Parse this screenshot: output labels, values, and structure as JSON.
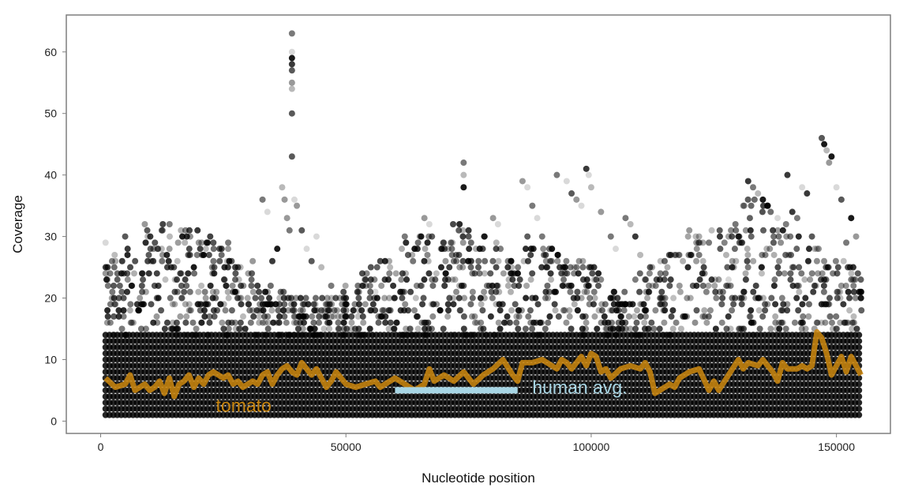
{
  "chart_data": {
    "type": "scatter",
    "title": "",
    "xlabel": "Nucleotide position",
    "ylabel": "Coverage",
    "xlim": [
      -7000,
      161000
    ],
    "ylim": [
      -2,
      66
    ],
    "xticks": [
      0,
      50000,
      100000,
      150000
    ],
    "yticks": [
      0,
      10,
      20,
      30,
      40,
      50,
      60
    ],
    "grid": false,
    "legend": "none",
    "point_color": "#000000",
    "points_note": "dense grey/black semi-transparent points; coverage per nucleotide position, mostly 1-20",
    "points": [
      [
        1000,
        29
      ],
      [
        1000,
        25
      ],
      [
        1000,
        24
      ],
      [
        1500,
        22
      ],
      [
        2000,
        19
      ],
      [
        5000,
        30
      ],
      [
        5500,
        28
      ],
      [
        9000,
        32
      ],
      [
        9500,
        31
      ],
      [
        11000,
        22
      ],
      [
        17000,
        21
      ],
      [
        19000,
        25
      ],
      [
        20000,
        29
      ],
      [
        21000,
        27
      ],
      [
        23000,
        26
      ],
      [
        26000,
        29
      ],
      [
        26000,
        28
      ],
      [
        28000,
        25
      ],
      [
        31000,
        26
      ],
      [
        33000,
        36
      ],
      [
        34000,
        34
      ],
      [
        35000,
        26
      ],
      [
        36000,
        28
      ],
      [
        37000,
        38
      ],
      [
        37500,
        36
      ],
      [
        38000,
        33
      ],
      [
        38500,
        31
      ],
      [
        39000,
        63
      ],
      [
        39000,
        60
      ],
      [
        39000,
        59
      ],
      [
        39000,
        58
      ],
      [
        39000,
        57
      ],
      [
        39000,
        55
      ],
      [
        39000,
        54
      ],
      [
        39000,
        50
      ],
      [
        39000,
        43
      ],
      [
        39500,
        36
      ],
      [
        40000,
        35
      ],
      [
        41000,
        31
      ],
      [
        42000,
        28
      ],
      [
        43000,
        26
      ],
      [
        44000,
        30
      ],
      [
        45000,
        25
      ],
      [
        47000,
        22
      ],
      [
        50000,
        20
      ],
      [
        54000,
        23
      ],
      [
        56000,
        21
      ],
      [
        59000,
        25
      ],
      [
        62000,
        30
      ],
      [
        64000,
        28
      ],
      [
        66000,
        33
      ],
      [
        67000,
        32
      ],
      [
        70000,
        28
      ],
      [
        72000,
        26
      ],
      [
        74000,
        42
      ],
      [
        74000,
        40
      ],
      [
        74000,
        38
      ],
      [
        75000,
        31
      ],
      [
        77000,
        25
      ],
      [
        80000,
        33
      ],
      [
        81000,
        32
      ],
      [
        83000,
        25
      ],
      [
        86000,
        39
      ],
      [
        87000,
        38
      ],
      [
        88000,
        35
      ],
      [
        89000,
        33
      ],
      [
        90000,
        30
      ],
      [
        92000,
        28
      ],
      [
        93000,
        40
      ],
      [
        95000,
        39
      ],
      [
        96000,
        37
      ],
      [
        97000,
        36
      ],
      [
        98000,
        35
      ],
      [
        99000,
        41
      ],
      [
        99500,
        40
      ],
      [
        100000,
        38
      ],
      [
        102000,
        34
      ],
      [
        104000,
        30
      ],
      [
        105000,
        28
      ],
      [
        107000,
        33
      ],
      [
        108000,
        32
      ],
      [
        109000,
        30
      ],
      [
        110000,
        27
      ],
      [
        112000,
        25
      ],
      [
        114000,
        23
      ],
      [
        116000,
        22
      ],
      [
        118000,
        22
      ],
      [
        120000,
        31
      ],
      [
        122000,
        27
      ],
      [
        124000,
        29
      ],
      [
        126000,
        23
      ],
      [
        128000,
        23
      ],
      [
        130000,
        30
      ],
      [
        131000,
        35
      ],
      [
        132000,
        39
      ],
      [
        133000,
        38
      ],
      [
        134000,
        37
      ],
      [
        135000,
        36
      ],
      [
        136000,
        35
      ],
      [
        138000,
        33
      ],
      [
        140000,
        40
      ],
      [
        141000,
        34
      ],
      [
        142000,
        33
      ],
      [
        143000,
        38
      ],
      [
        144000,
        37
      ],
      [
        145000,
        30
      ],
      [
        146000,
        28
      ],
      [
        147000,
        46
      ],
      [
        147500,
        45
      ],
      [
        148000,
        44
      ],
      [
        148500,
        42
      ],
      [
        149000,
        43
      ],
      [
        150000,
        38
      ],
      [
        151000,
        36
      ],
      [
        152000,
        29
      ],
      [
        153000,
        33
      ],
      [
        154000,
        30
      ],
      [
        155000,
        21
      ]
    ],
    "series": [
      {
        "name": "tomato",
        "color": "#c8850f",
        "x": [
          1000,
          3000,
          5000,
          6000,
          7000,
          8000,
          9000,
          10000,
          11000,
          12000,
          13000,
          14000,
          15000,
          16000,
          17000,
          18000,
          19000,
          20000,
          21000,
          22000,
          23000,
          24000,
          25000,
          26000,
          27000,
          28000,
          29000,
          30000,
          31000,
          32000,
          33000,
          34000,
          35000,
          36000,
          37000,
          38000,
          39000,
          40000,
          41000,
          42000,
          43000,
          44000,
          45000,
          46000,
          47000,
          48000,
          50000,
          52000,
          54000,
          56000,
          57000,
          58000,
          60000,
          62000,
          64000,
          66000,
          67000,
          68000,
          70000,
          72000,
          74000,
          76000,
          78000,
          80000,
          82000,
          84000,
          85000,
          86000,
          88000,
          90000,
          92000,
          93000,
          94000,
          95000,
          96000,
          97000,
          98000,
          99000,
          100000,
          101000,
          102000,
          103000,
          104000,
          106000,
          108000,
          110000,
          111000,
          112000,
          113000,
          114000,
          116000,
          117000,
          118000,
          120000,
          122000,
          124000,
          125000,
          126000,
          128000,
          130000,
          131000,
          132000,
          134000,
          135000,
          136000,
          137000,
          138000,
          139000,
          140000,
          142000,
          143000,
          144000,
          145000,
          146000,
          147000,
          148000,
          149000,
          150000,
          151000,
          152000,
          153000,
          154000,
          155000
        ],
        "y": [
          7,
          5.5,
          6,
          7.5,
          5,
          5.5,
          6,
          5,
          5.5,
          6.5,
          4.5,
          7,
          4,
          6,
          6.5,
          7.5,
          5.5,
          7,
          6,
          7.5,
          8,
          7.5,
          7,
          7.5,
          6,
          6.5,
          5.5,
          6,
          6.5,
          6,
          7.5,
          8,
          6,
          7.5,
          8.5,
          9,
          8,
          7.5,
          9.5,
          8.5,
          7.5,
          8.5,
          7,
          5.5,
          6.5,
          8,
          6,
          5.5,
          6,
          6.5,
          5.5,
          6,
          7,
          6,
          5,
          6,
          8.5,
          6.5,
          7.5,
          6.5,
          8,
          6,
          7.5,
          8.5,
          10,
          7.5,
          6.5,
          9.5,
          9.5,
          10,
          9,
          8.5,
          10,
          9.5,
          8.5,
          9.5,
          10.5,
          9,
          11,
          10.5,
          8,
          8.5,
          7,
          8.5,
          9,
          8.5,
          9.5,
          8,
          4.5,
          5,
          6,
          5.5,
          7,
          8,
          8.5,
          5,
          6.5,
          5,
          7.5,
          10,
          8.5,
          9.5,
          9,
          10,
          9,
          8,
          6.5,
          9.5,
          8.5,
          8.5,
          9,
          8.5,
          9,
          14.5,
          13.5,
          11,
          7.5,
          9,
          10.5,
          8,
          10.5,
          9,
          7.5
        ]
      },
      {
        "name": "human avg.",
        "color": "#a7d5e4",
        "x": [
          60000,
          85000
        ],
        "y": [
          5,
          5
        ]
      }
    ]
  }
}
